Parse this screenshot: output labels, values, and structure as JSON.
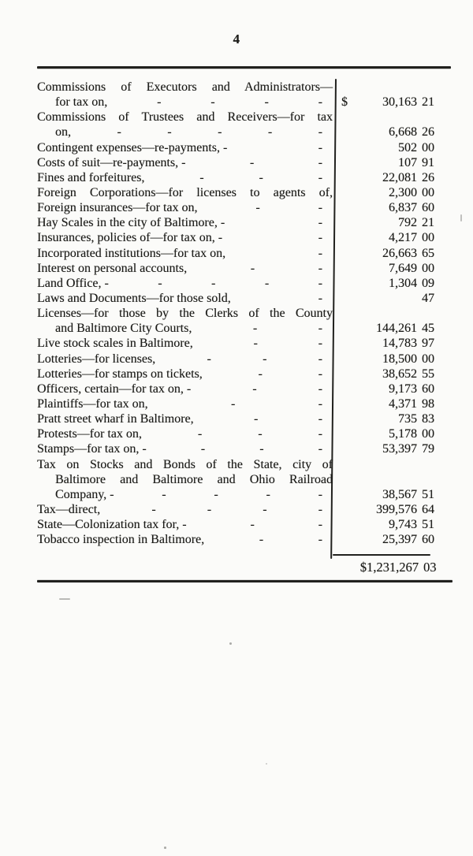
{
  "page_number": "4",
  "ledger": {
    "rows": [
      {
        "text": "Commissions of Executors and Administrators—",
        "indent": 0,
        "leaders": 0,
        "justify": true,
        "sign": "",
        "dollars": "",
        "cents": ""
      },
      {
        "text": "for tax on,",
        "indent": 1,
        "leaders": 4,
        "justify": false,
        "sign": "$",
        "dollars": "30,163",
        "cents": "21"
      },
      {
        "text": "Commissions of Trustees and Receivers—for tax",
        "indent": 0,
        "leaders": 0,
        "justify": true,
        "sign": "",
        "dollars": "",
        "cents": ""
      },
      {
        "text": "on,",
        "indent": 1,
        "leaders": 5,
        "justify": false,
        "sign": "",
        "dollars": "6,668",
        "cents": "26"
      },
      {
        "text": "Contingent expenses—re-payments, -",
        "indent": 0,
        "leaders": 1,
        "justify": false,
        "sign": "",
        "dollars": "502",
        "cents": "00"
      },
      {
        "text": "Costs of suit—re-payments, -",
        "indent": 0,
        "leaders": 2,
        "justify": false,
        "sign": "",
        "dollars": "107",
        "cents": "91"
      },
      {
        "text": "Fines and forfeitures,",
        "indent": 0,
        "leaders": 3,
        "justify": false,
        "sign": "",
        "dollars": "22,081",
        "cents": "26"
      },
      {
        "text": "Foreign Corporations—for licenses to agents of,",
        "indent": 0,
        "leaders": 0,
        "justify": true,
        "sign": "",
        "dollars": "2,300",
        "cents": "00"
      },
      {
        "text": "Foreign insurances—for tax on,",
        "indent": 0,
        "leaders": 2,
        "justify": false,
        "sign": "",
        "dollars": "6,837",
        "cents": "60"
      },
      {
        "text": "Hay Scales in the city of Baltimore, -",
        "indent": 0,
        "leaders": 1,
        "justify": false,
        "sign": "",
        "dollars": "792",
        "cents": "21"
      },
      {
        "text": "Insurances, policies of—for tax on, -",
        "indent": 0,
        "leaders": 1,
        "justify": false,
        "sign": "",
        "dollars": "4,217",
        "cents": "00"
      },
      {
        "text": "Incorporated institutions—for tax on,",
        "indent": 0,
        "leaders": 1,
        "justify": false,
        "sign": "",
        "dollars": "26,663",
        "cents": "65"
      },
      {
        "text": "Interest on personal accounts,",
        "indent": 0,
        "leaders": 2,
        "justify": false,
        "sign": "",
        "dollars": "7,649",
        "cents": "00"
      },
      {
        "text": "Land Office, -",
        "indent": 0,
        "leaders": 4,
        "justify": false,
        "sign": "",
        "dollars": "1,304",
        "cents": "09"
      },
      {
        "text": "Laws and Documents—for those sold,",
        "indent": 0,
        "leaders": 1,
        "justify": false,
        "sign": "",
        "dollars": "",
        "cents": "47"
      },
      {
        "text": "Licenses—for those by the Clerks of the County",
        "indent": 0,
        "leaders": 0,
        "justify": true,
        "sign": "",
        "dollars": "",
        "cents": ""
      },
      {
        "text": "and Baltimore City Courts,",
        "indent": 1,
        "leaders": 2,
        "justify": false,
        "sign": "",
        "dollars": "144,261",
        "cents": "45"
      },
      {
        "text": "Live stock scales in Baltimore,",
        "indent": 0,
        "leaders": 2,
        "justify": false,
        "sign": "",
        "dollars": "14,783",
        "cents": "97"
      },
      {
        "text": "Lotteries—for licenses,",
        "indent": 0,
        "leaders": 3,
        "justify": false,
        "sign": "",
        "dollars": "18,500",
        "cents": "00"
      },
      {
        "text": "Lotteries—for stamps on tickets,",
        "indent": 0,
        "leaders": 2,
        "justify": false,
        "sign": "",
        "dollars": "38,652",
        "cents": "55"
      },
      {
        "text": "Officers, certain—for tax on, -",
        "indent": 0,
        "leaders": 2,
        "justify": false,
        "sign": "",
        "dollars": "9,173",
        "cents": "60"
      },
      {
        "text": "Plaintiffs—for tax on,",
        "indent": 0,
        "leaders": 2,
        "justify": false,
        "sign": "",
        "dollars": "4,371",
        "cents": "98"
      },
      {
        "text": "Pratt street wharf in Baltimore,",
        "indent": 0,
        "leaders": 2,
        "justify": false,
        "sign": "",
        "dollars": "735",
        "cents": "83"
      },
      {
        "text": "Protests—for tax on,",
        "indent": 0,
        "leaders": 3,
        "justify": false,
        "sign": "",
        "dollars": "5,178",
        "cents": "00"
      },
      {
        "text": "Stamps—for tax on, -",
        "indent": 0,
        "leaders": 3,
        "justify": false,
        "sign": "",
        "dollars": "53,397",
        "cents": "79"
      },
      {
        "text": "Tax on Stocks and Bonds of the State, city of",
        "indent": 0,
        "leaders": 0,
        "justify": true,
        "sign": "",
        "dollars": "",
        "cents": ""
      },
      {
        "text": "Baltimore and Baltimore and Ohio Railroad",
        "indent": 1,
        "leaders": 0,
        "justify": true,
        "sign": "",
        "dollars": "",
        "cents": ""
      },
      {
        "text": "Company, -",
        "indent": 1,
        "leaders": 4,
        "justify": false,
        "sign": "",
        "dollars": "38,567",
        "cents": "51"
      },
      {
        "text": "Tax—direct,",
        "indent": 0,
        "leaders": 4,
        "justify": false,
        "sign": "",
        "dollars": "399,576",
        "cents": "64"
      },
      {
        "text": "State—Colonization tax for, -",
        "indent": 0,
        "leaders": 2,
        "justify": false,
        "sign": "",
        "dollars": "9,743",
        "cents": "51"
      },
      {
        "text": "Tobacco inspection in Baltimore,",
        "indent": 0,
        "leaders": 2,
        "justify": false,
        "sign": "",
        "dollars": "25,397",
        "cents": "60"
      }
    ],
    "total": {
      "dollars": "$1,231,267",
      "cents": "03"
    }
  }
}
